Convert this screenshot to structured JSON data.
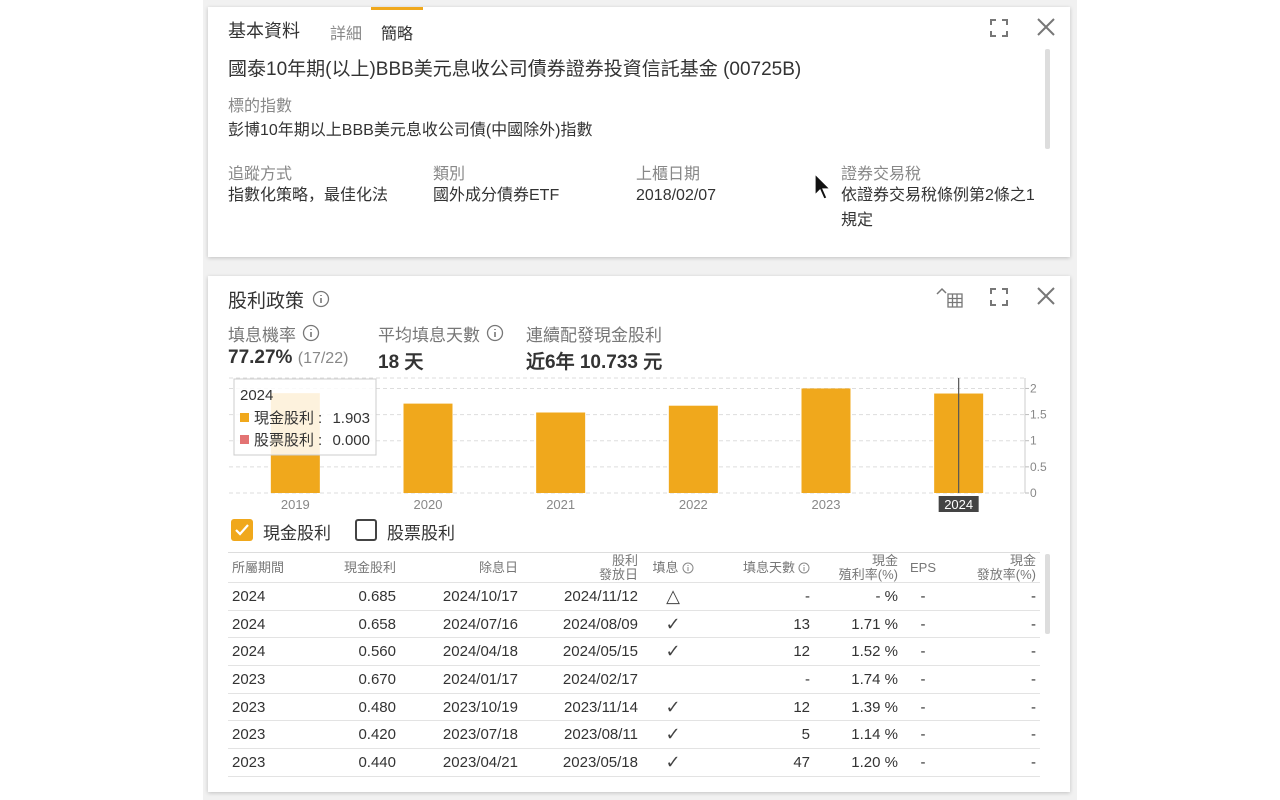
{
  "basic": {
    "tabs": [
      "基本資料",
      "詳細",
      "簡略"
    ],
    "fund_name": "國泰10年期(以上)BBB美元息收公司債券證券投資信託基金 (00725B)",
    "index_label": "標的指數",
    "index_value": "彭博10年期以上BBB美元息收公司債(中國除外)指數",
    "fields": [
      {
        "label": "追蹤方式",
        "value": "指數化策略，最佳化法"
      },
      {
        "label": "類別",
        "value": "國外成分債券ETF"
      },
      {
        "label": "上櫃日期",
        "value": "2018/02/07"
      },
      {
        "label": "證券交易稅",
        "value": "依證券交易稅條例第2條之1規定"
      }
    ]
  },
  "dividend": {
    "title": "股利政策",
    "stats": [
      {
        "label": "填息機率",
        "value": "77.27%",
        "note": "(17/22)"
      },
      {
        "label": "平均填息天數",
        "value": "18 天"
      },
      {
        "label": "連續配發現金股利",
        "value": "近6年 10.733 元"
      }
    ]
  },
  "chart_data": {
    "type": "bar",
    "categories": [
      "2019",
      "2020",
      "2021",
      "2022",
      "2023",
      "2024"
    ],
    "series": [
      {
        "name": "現金股利",
        "color": "#f0a81c",
        "values": [
          1.91,
          1.71,
          1.54,
          1.67,
          2.0,
          1.903
        ],
        "value_labels": [
          null,
          null,
          null,
          null,
          null,
          "1.903"
        ]
      },
      {
        "name": "股票股利",
        "color": "#e37373",
        "values": [
          0,
          0,
          0,
          0,
          0,
          0
        ],
        "value_labels": [
          null,
          null,
          null,
          null,
          null,
          "0.000"
        ]
      }
    ],
    "ylim": [
      0,
      2.2
    ],
    "yticks": [
      0,
      0.5,
      1,
      1.5,
      2
    ],
    "grid": true
  },
  "table": {
    "headers": [
      [
        "所屬期間"
      ],
      [
        "現金股利"
      ],
      [
        "除息日"
      ],
      [
        "股利",
        "發放日"
      ],
      [
        "填息"
      ],
      [
        "填息天數"
      ],
      [
        "現金",
        "殖利率(%)"
      ],
      [
        "EPS"
      ],
      [
        "現金",
        "發放率(%)"
      ]
    ],
    "rows": [
      [
        "2024",
        "0.685",
        "2024/10/17",
        "2024/11/12",
        "△",
        "-",
        "- %",
        "-",
        "-"
      ],
      [
        "2024",
        "0.658",
        "2024/07/16",
        "2024/08/09",
        "✓",
        "13",
        "1.71 %",
        "-",
        "-"
      ],
      [
        "2024",
        "0.560",
        "2024/04/18",
        "2024/05/15",
        "✓",
        "12",
        "1.52 %",
        "-",
        "-"
      ],
      [
        "2023",
        "0.670",
        "2024/01/17",
        "2024/02/17",
        "",
        "-",
        "1.74 %",
        "-",
        "-"
      ],
      [
        "2023",
        "0.480",
        "2023/10/19",
        "2023/11/14",
        "✓",
        "12",
        "1.39 %",
        "-",
        "-"
      ],
      [
        "2023",
        "0.420",
        "2023/07/18",
        "2023/08/11",
        "✓",
        "5",
        "1.14 %",
        "-",
        "-"
      ],
      [
        "2023",
        "0.440",
        "2023/04/21",
        "2023/05/18",
        "✓",
        "47",
        "1.20 %",
        "-",
        "-"
      ]
    ]
  }
}
